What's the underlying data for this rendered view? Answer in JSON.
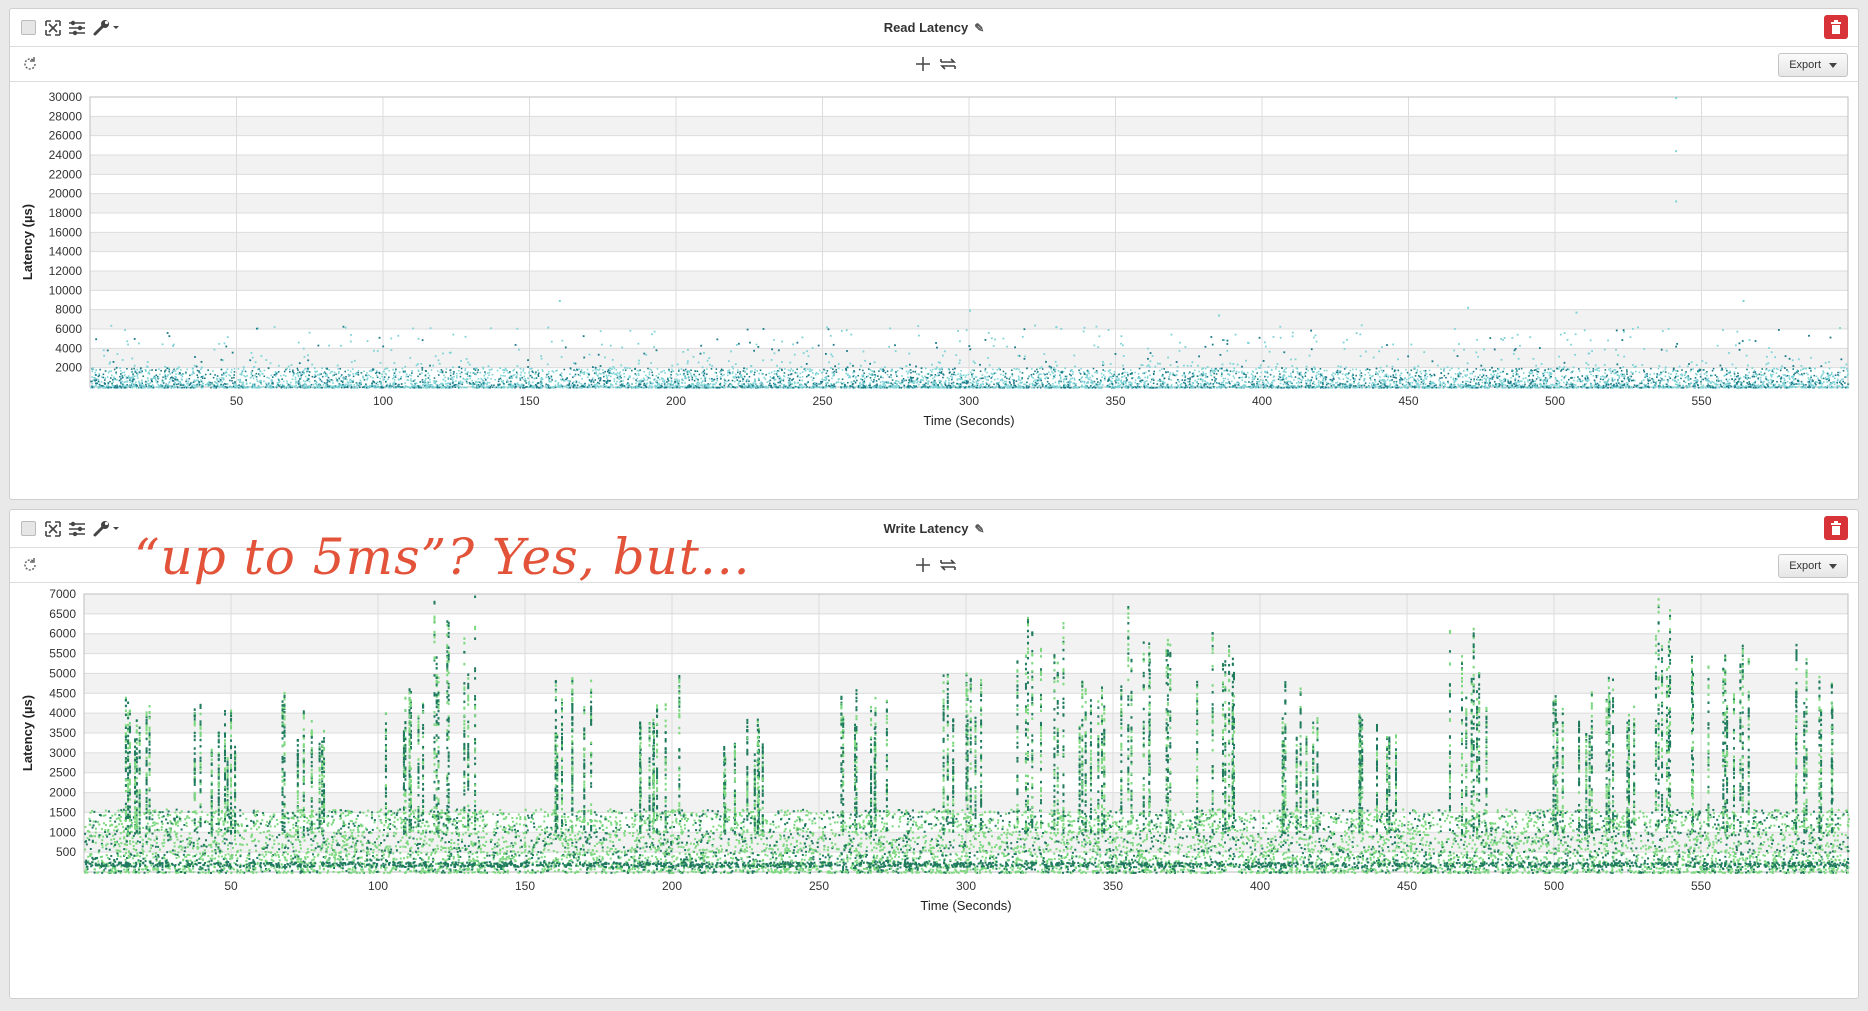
{
  "panels": [
    {
      "title": "Read Latency",
      "export_label": "Export"
    },
    {
      "title": "Write Latency",
      "export_label": "Export"
    }
  ],
  "annotation": "“up to 5ms”? Yes, but...",
  "colors": {
    "read_light": "#7fd3d6",
    "read_dark": "#1a7a88",
    "write_light": "#7dd87f",
    "write_dark": "#1f7a5e",
    "annotation": "#e2533a",
    "trash": "#d9333a"
  },
  "icons": [
    "checkbox",
    "expand-icon",
    "sliders-icon",
    "wrench-icon",
    "chevron-down-icon",
    "pencil-icon",
    "trash-icon",
    "refresh-icon",
    "plus-icon",
    "swap-icon"
  ],
  "chart_data": [
    {
      "type": "scatter",
      "title": "Read Latency",
      "xlabel": "Time (Seconds)",
      "ylabel": "Latency (µs)",
      "xlim": [
        0,
        600
      ],
      "ylim": [
        0,
        30000
      ],
      "xticks": [
        50,
        100,
        150,
        200,
        250,
        300,
        350,
        400,
        450,
        500,
        550
      ],
      "yticks": [
        2000,
        4000,
        6000,
        8000,
        10000,
        12000,
        14000,
        16000,
        18000,
        20000,
        22000,
        24000,
        26000,
        28000,
        30000
      ],
      "grid": true,
      "description_points": "dense band 0-2000 across full range; sparse points up to ~6000",
      "outliers": [
        [
          160,
          9000
        ],
        [
          300,
          8000
        ],
        [
          385,
          7500
        ],
        [
          470,
          8300
        ],
        [
          507,
          7800
        ],
        [
          541,
          30000
        ],
        [
          541,
          24500
        ],
        [
          541,
          19300
        ],
        [
          564,
          9000
        ]
      ]
    },
    {
      "type": "scatter",
      "title": "Write Latency",
      "xlabel": "Time (Seconds)",
      "ylabel": "Latency (µs)",
      "xlim": [
        0,
        600
      ],
      "ylim": [
        0,
        7000
      ],
      "xticks": [
        50,
        100,
        150,
        200,
        250,
        300,
        350,
        400,
        450,
        500,
        550
      ],
      "yticks": [
        500,
        1000,
        1500,
        2000,
        2500,
        3000,
        3500,
        4000,
        4500,
        5000,
        5500,
        6000,
        6500,
        7000
      ],
      "grid": true,
      "description_points": "dense band 0-1500 across full range with periodic vertical streaks reaching 4000-5500",
      "bursts": [
        [
          20,
          4800
        ],
        [
          45,
          4300
        ],
        [
          75,
          4600
        ],
        [
          110,
          4900
        ],
        [
          125,
          7100
        ],
        [
          165,
          5000
        ],
        [
          195,
          5100
        ],
        [
          225,
          4200
        ],
        [
          265,
          4800
        ],
        [
          300,
          5300
        ],
        [
          325,
          6900
        ],
        [
          345,
          5000
        ],
        [
          362,
          7000
        ],
        [
          385,
          6200
        ],
        [
          415,
          4900
        ],
        [
          440,
          4800
        ],
        [
          470,
          6200
        ],
        [
          505,
          4700
        ],
        [
          525,
          5000
        ],
        [
          540,
          7000
        ],
        [
          560,
          5800
        ],
        [
          590,
          5900
        ]
      ]
    }
  ]
}
